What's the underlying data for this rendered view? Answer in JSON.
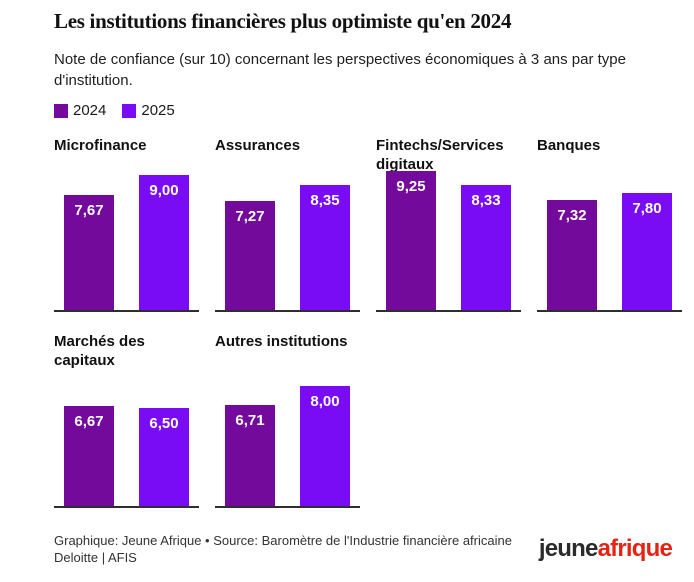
{
  "header": {
    "title": "Les institutions financières plus optimiste qu'en 2024",
    "subtitle": "Note de confiance (sur 10) concernant les perspectives économiques à 3 ans par type d'institution."
  },
  "chart_data": {
    "type": "bar",
    "title": "Les institutions financières plus optimiste qu'en 2024",
    "subtitle": "Note de confiance (sur 10) concernant les perspectives économiques à 3 ans par type d'institution.",
    "ylim": [
      0,
      10
    ],
    "grid": false,
    "legend_position": "top-left",
    "categories": [
      "Microfinance",
      "Assurances",
      "Fintechs/Services digitaux",
      "Banques",
      "Marchés des capitaux",
      "Autres institutions"
    ],
    "series": [
      {
        "name": "2024",
        "color": "#740a9b",
        "values": [
          7.67,
          7.27,
          9.25,
          7.32,
          6.67,
          6.71
        ]
      },
      {
        "name": "2025",
        "color": "#7a0bf5",
        "values": [
          9.0,
          8.35,
          8.33,
          7.8,
          6.5,
          8.0
        ]
      }
    ],
    "panels": [
      {
        "title": "Microfinance",
        "row": 1,
        "values": [
          7.67,
          9.0
        ],
        "labels": [
          "7,67",
          "9,00"
        ]
      },
      {
        "title": "Assurances",
        "row": 1,
        "values": [
          7.27,
          8.35
        ],
        "labels": [
          "7,27",
          "8,35"
        ]
      },
      {
        "title": "Fintechs/Services digitaux",
        "row": 1,
        "values": [
          9.25,
          8.33
        ],
        "labels": [
          "9,25",
          "8,33"
        ]
      },
      {
        "title": "Banques",
        "row": 1,
        "values": [
          7.32,
          7.8
        ],
        "labels": [
          "7,32",
          "7,80"
        ]
      },
      {
        "title": "Marchés des capitaux",
        "row": 2,
        "values": [
          6.67,
          6.5
        ],
        "labels": [
          "6,67",
          "6,50"
        ]
      },
      {
        "title": "Autres institutions",
        "row": 2,
        "values": [
          6.71,
          8.0
        ],
        "labels": [
          "6,71",
          "8,00"
        ]
      }
    ]
  },
  "footer": {
    "credit": "Graphique: Jeune Afrique • Source: Baromètre de l'Industrie financière africaine Deloitte | AFIS",
    "logo": {
      "part1": "jeune",
      "part2": "afrique"
    }
  }
}
